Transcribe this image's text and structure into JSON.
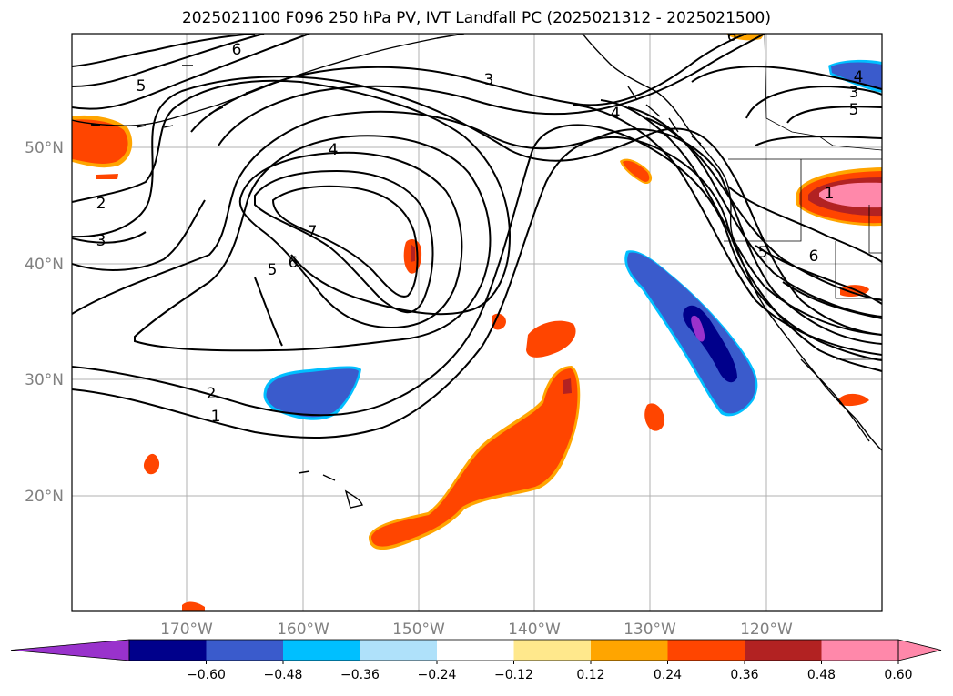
{
  "title": "2025021100 F096 250 hPa PV, IVT Landfall PC (2025021312 - 2025021500)",
  "map": {
    "lon_labels": [
      "170°W",
      "160°W",
      "150°W",
      "140°W",
      "130°W",
      "120°W"
    ],
    "lat_labels": [
      "50°N",
      "40°N",
      "30°N",
      "20°N"
    ],
    "contour_labels": [
      "6",
      "5",
      "3",
      "4",
      "7",
      "6",
      "5",
      "2",
      "3",
      "2",
      "1",
      "4",
      "6",
      "5",
      "3",
      "4",
      "5",
      "6",
      "6",
      "1"
    ]
  },
  "colorbar": {
    "ticks": [
      "−0.60",
      "−0.48",
      "−0.36",
      "−0.24",
      "−0.12",
      "0.12",
      "0.24",
      "0.36",
      "0.48",
      "0.60"
    ],
    "colors": [
      "#9932cc",
      "#00008b",
      "#3a5bcc",
      "#00bfff",
      "#afe1fa",
      "#ffffff",
      "#ffe88c",
      "#ffa500",
      "#ff4500",
      "#b22222",
      "#ff88aa",
      "#ff88aa"
    ]
  }
}
